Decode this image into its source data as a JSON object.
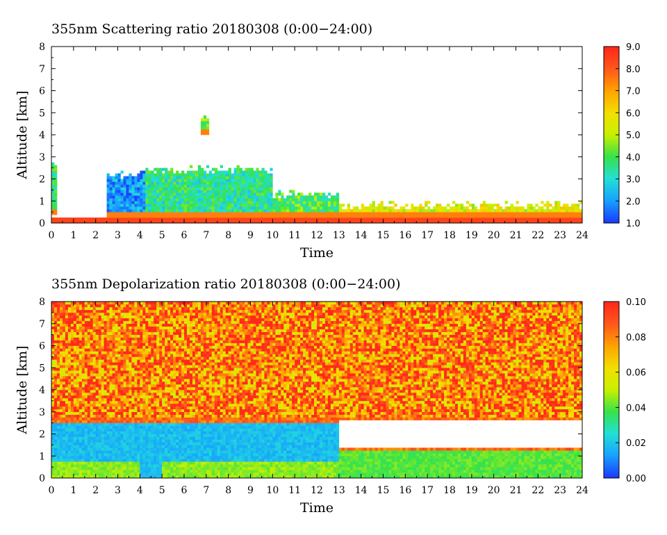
{
  "chart_data": [
    {
      "type": "heatmap",
      "title": "355nm Scattering ratio  20180308 (0:00−24:00)",
      "xlabel": "Time",
      "ylabel": "Altitude [km]",
      "x_ticks": [
        "0",
        "1",
        "2",
        "3",
        "4",
        "5",
        "6",
        "7",
        "8",
        "9",
        "10",
        "11",
        "12",
        "13",
        "14",
        "15",
        "16",
        "17",
        "18",
        "19",
        "20",
        "21",
        "22",
        "23",
        "24"
      ],
      "y_ticks": [
        "0",
        "1",
        "2",
        "3",
        "4",
        "5",
        "6",
        "7",
        "8"
      ],
      "xlim": [
        0,
        24
      ],
      "ylim": [
        0,
        8
      ],
      "colorbar": {
        "range": [
          1.0,
          9.0
        ],
        "ticks": [
          "1.0",
          "2.0",
          "3.0",
          "4.0",
          "5.0",
          "6.0",
          "7.0",
          "8.0",
          "9.0"
        ],
        "colormap": [
          "#1a3cff",
          "#17a2ff",
          "#22e0d6",
          "#36e24a",
          "#c8f000",
          "#f2e000",
          "#ffa400",
          "#ff5a1a",
          "#ff2a1a"
        ]
      },
      "description_features": {
        "surface_layer_top_km": 0.3,
        "cloud_layers": [
          {
            "t_start": 0.0,
            "t_end": 0.3,
            "base_km": 0.4,
            "top_km": 2.8,
            "level": 3.5
          },
          {
            "t_start": 2.5,
            "t_end": 4.2,
            "base_km": 0.3,
            "top_km": 2.4,
            "level": 2.0
          },
          {
            "t_start": 4.2,
            "t_end": 10.0,
            "base_km": 0.3,
            "top_km": 2.6,
            "level": 3.5
          },
          {
            "t_start": 6.8,
            "t_end": 7.1,
            "base_km": 4.0,
            "top_km": 5.0,
            "level": 4.5
          },
          {
            "t_start": 10.0,
            "t_end": 13.0,
            "base_km": 0.2,
            "top_km": 1.5,
            "level": 4.0
          },
          {
            "t_start": 13.0,
            "t_end": 24.0,
            "base_km": 0.2,
            "top_km": 1.0,
            "level": 5.5
          }
        ]
      }
    },
    {
      "type": "heatmap",
      "title": "355nm Depolarization ratio  20180308 (0:00−24:00)",
      "xlabel": "Time",
      "ylabel": "Altitude [km]",
      "x_ticks": [
        "0",
        "1",
        "2",
        "3",
        "4",
        "5",
        "6",
        "7",
        "8",
        "9",
        "10",
        "11",
        "12",
        "13",
        "14",
        "15",
        "16",
        "17",
        "18",
        "19",
        "20",
        "21",
        "22",
        "23",
        "24"
      ],
      "y_ticks": [
        "0",
        "1",
        "2",
        "3",
        "4",
        "5",
        "6",
        "7",
        "8"
      ],
      "xlim": [
        0,
        24
      ],
      "ylim": [
        0,
        8
      ],
      "colorbar": {
        "range": [
          0.0,
          0.1
        ],
        "ticks": [
          "0.00",
          "0.02",
          "0.04",
          "0.06",
          "0.08",
          "0.10"
        ],
        "colormap": [
          "#1a3cff",
          "#17a2ff",
          "#22e0d6",
          "#36e24a",
          "#c8f000",
          "#f2e000",
          "#ffa400",
          "#ff5a1a",
          "#ff2a1a"
        ]
      },
      "description_features": {
        "noisy_region_above_km": 2.8,
        "blue_layer": {
          "t_start": 0.0,
          "t_end": 13.0,
          "top_km": 2.5,
          "level": 0.018
        },
        "green_band": {
          "t_start": 13.0,
          "t_end": 24.0,
          "base_km": 0.0,
          "top_km": 1.3,
          "level": 0.04
        },
        "white_gap": {
          "t_start": 13.0,
          "t_end": 24.0,
          "base_km": 1.4,
          "top_km": 2.6
        }
      }
    }
  ]
}
